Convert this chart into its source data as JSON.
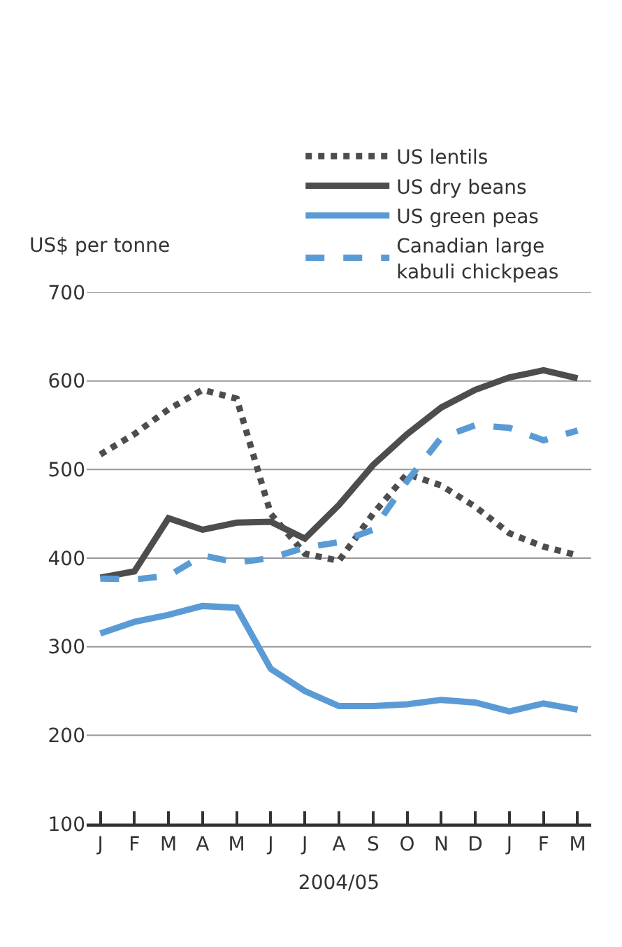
{
  "chart_data": {
    "type": "line",
    "ylabel": "US$ per tonne",
    "xlabel": "2004/05",
    "categories": [
      "J",
      "F",
      "M",
      "A",
      "M",
      "J",
      "J",
      "A",
      "S",
      "O",
      "N",
      "D",
      "J",
      "F",
      "M"
    ],
    "series": [
      {
        "name": "US lentils",
        "color": "#4d4d4d",
        "line_style": "dotted",
        "values": [
          517,
          540,
          568,
          590,
          580,
          450,
          405,
          397,
          450,
          495,
          482,
          458,
          428,
          413,
          403
        ]
      },
      {
        "name": "US dry beans",
        "color": "#4d4d4d",
        "line_style": "solid",
        "values": [
          378,
          385,
          445,
          432,
          440,
          441,
          422,
          460,
          505,
          540,
          570,
          590,
          604,
          612,
          603
        ]
      },
      {
        "name": "US green peas",
        "color": "#5b9bd5",
        "line_style": "solid",
        "values": [
          315,
          328,
          336,
          346,
          344,
          275,
          250,
          233,
          233,
          235,
          240,
          237,
          227,
          236,
          229
        ]
      },
      {
        "name": "Canadian large\nkabuli chickpeas",
        "color": "#5b9bd5",
        "line_style": "dashed",
        "values": [
          377,
          376,
          380,
          403,
          395,
          400,
          412,
          418,
          432,
          487,
          536,
          550,
          547,
          533,
          544
        ]
      }
    ],
    "ylim": [
      100,
      700
    ],
    "yticks": [
      100,
      200,
      300,
      400,
      500,
      600,
      700
    ],
    "grid": "y",
    "legend": "top right",
    "marker": "none"
  }
}
